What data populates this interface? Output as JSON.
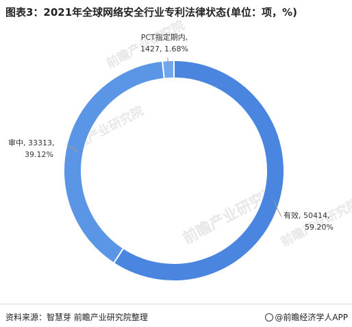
{
  "title": "图表3：2021年全球网络安全行业专利法律状态(单位：项，%)",
  "footer": {
    "source": "资料来源：智慧芽 前瞻产业研究院整理",
    "brand": "@前瞻经济学人APP"
  },
  "watermark": {
    "text": "前瞻产业研究院"
  },
  "colors": {
    "slice_main": "#4a86e0",
    "slice_second": "#5b95e6",
    "slice_small": "#6fa6ee",
    "label": "#333333",
    "leader": "#999999"
  },
  "chart_data": {
    "type": "pie",
    "variant": "donut",
    "title": "图表3：2021年全球网络安全行业专利法律状态(单位：项，%)",
    "unit": "项，%",
    "slices": [
      {
        "name": "有效",
        "value": 50414,
        "percent": "59.20%",
        "label_line1": "有效, 50414,",
        "label_line2": "59.20%"
      },
      {
        "name": "审中",
        "value": 33313,
        "percent": "39.12%",
        "label_line1": "审中, 33313,",
        "label_line2": "39.12%"
      },
      {
        "name": "PCT指定期内",
        "value": 1427,
        "percent": "1.68%",
        "label_line1": "PCT指定期内,",
        "label_line2": "1427, 1.68%"
      }
    ]
  }
}
